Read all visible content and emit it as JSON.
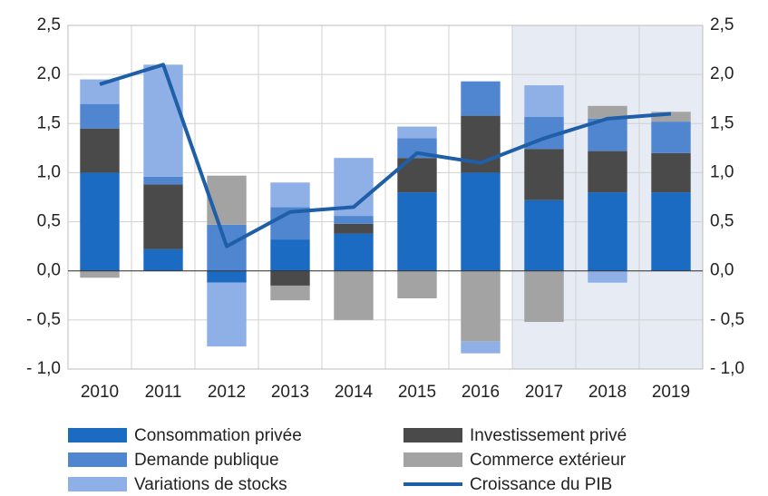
{
  "chart_data": {
    "type": "bar",
    "stacked": true,
    "categories": [
      "2010",
      "2011",
      "2012",
      "2013",
      "2014",
      "2015",
      "2016",
      "2017",
      "2018",
      "2019"
    ],
    "series": [
      {
        "name": "Consommation privée",
        "color": "#1a6bc1",
        "values": [
          1.0,
          0.22,
          -0.12,
          0.32,
          0.38,
          0.8,
          1.0,
          0.72,
          0.8,
          0.8
        ]
      },
      {
        "name": "Investissement privé",
        "color": "#4a4a4a",
        "values": [
          0.45,
          0.66,
          0,
          -0.15,
          0.1,
          0.35,
          0.58,
          0.52,
          0.42,
          0.4
        ]
      },
      {
        "name": "Demande publique",
        "color": "#4f86cf",
        "values": [
          0.25,
          0.08,
          0.47,
          0.33,
          0.08,
          0.2,
          0.35,
          0.33,
          0.33,
          0.32
        ]
      },
      {
        "name": "Commerce extérieur",
        "color": "#a3a3a3",
        "values": [
          -0.07,
          0,
          0.5,
          -0.15,
          -0.5,
          -0.28,
          -0.72,
          -0.52,
          0.13,
          0.1
        ]
      },
      {
        "name": "Variations de stocks",
        "color": "#8fb0e6",
        "values": [
          0.25,
          1.14,
          -0.65,
          0.25,
          0.59,
          0.12,
          -0.12,
          0.32,
          -0.12,
          0
        ]
      },
      {
        "name": "Croissance du PIB",
        "color": "#1f5fa8",
        "type": "line",
        "values": [
          1.9,
          2.1,
          0.25,
          0.6,
          0.65,
          1.2,
          1.1,
          1.35,
          1.55,
          1.6
        ]
      }
    ],
    "ylim": [
      -1.0,
      2.5
    ],
    "yticks": [
      {
        "value": -1.0,
        "label": "- 1,0"
      },
      {
        "value": -0.5,
        "label": "- 0,5"
      },
      {
        "value": 0,
        "label": "0,0"
      },
      {
        "value": 0.5,
        "label": "0,5"
      },
      {
        "value": 1.0,
        "label": "1,0"
      },
      {
        "value": 1.5,
        "label": "1,5"
      },
      {
        "value": 2.0,
        "label": "2,0"
      },
      {
        "value": 2.5,
        "label": "2,5"
      }
    ],
    "y2lim": [
      -1.0,
      2.5
    ],
    "y2ticks": [
      {
        "value": -1.0,
        "label": "- 1,0"
      },
      {
        "value": -0.5,
        "label": "- 0,5"
      },
      {
        "value": 0,
        "label": "0,0"
      },
      {
        "value": 0.5,
        "label": "0,5"
      },
      {
        "value": 1.0,
        "label": "1,0"
      },
      {
        "value": 1.5,
        "label": "1,5"
      },
      {
        "value": 2.0,
        "label": "2,0"
      },
      {
        "value": 2.5,
        "label": "2,5"
      }
    ],
    "grid": true,
    "forecast_shading": {
      "from": "2017",
      "color": "#e6ebf4"
    },
    "legend": "bottom"
  }
}
